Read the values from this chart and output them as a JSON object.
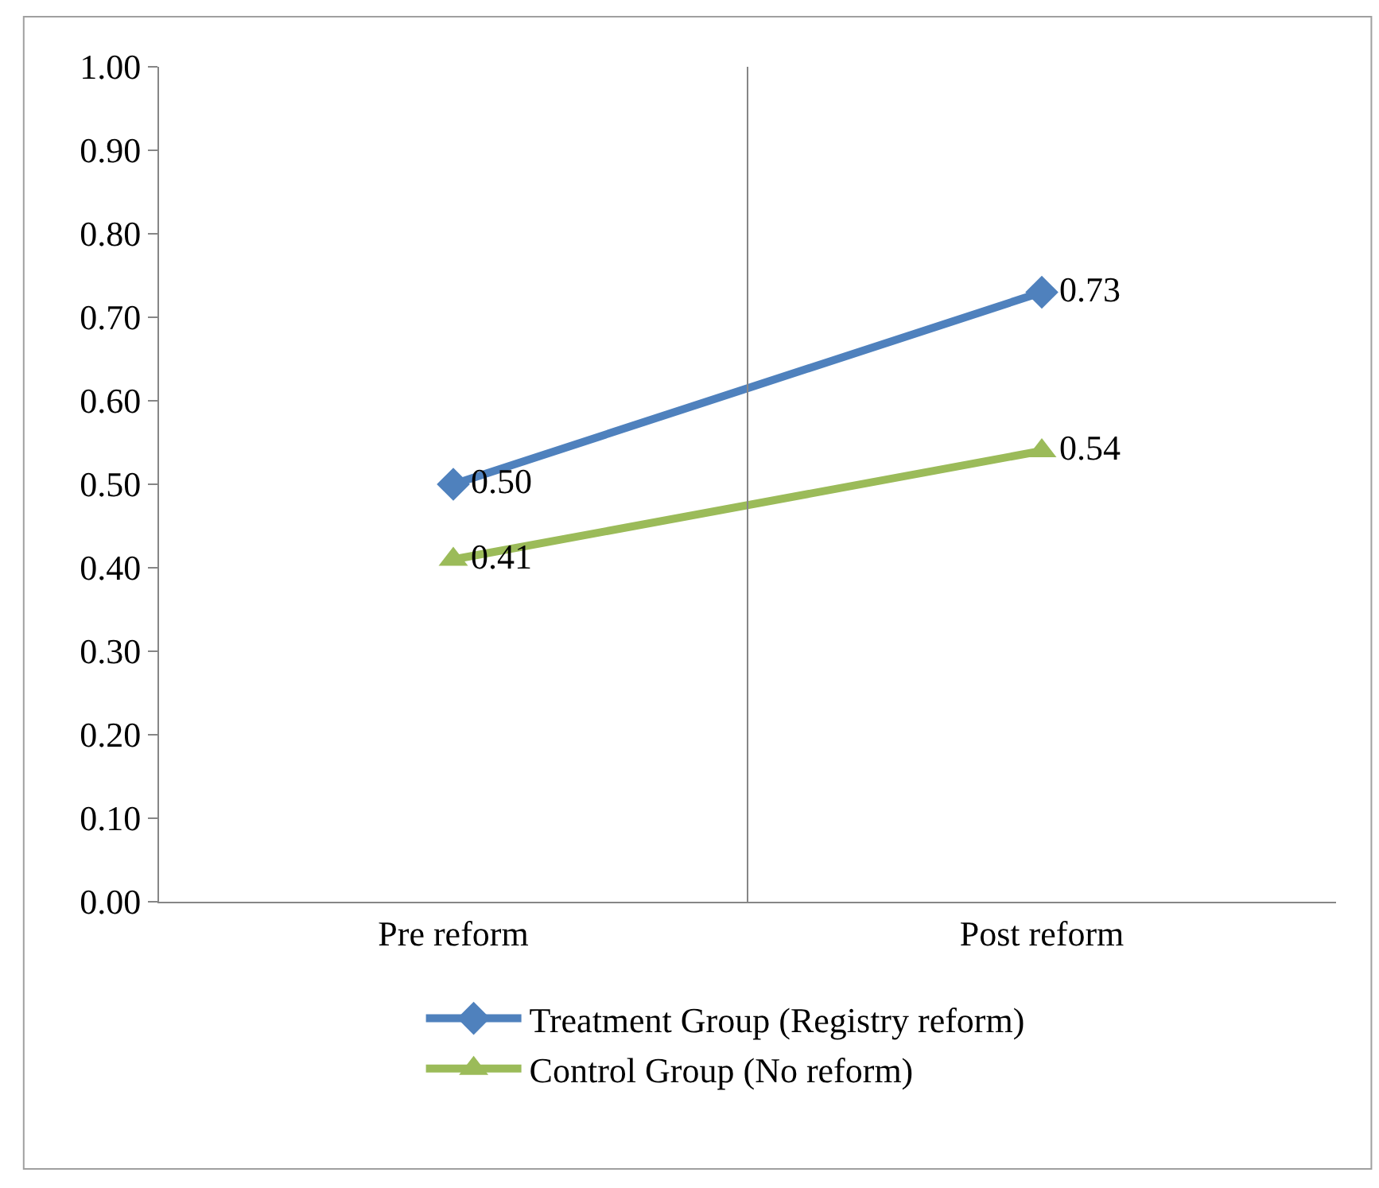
{
  "chart_data": {
    "type": "line",
    "categories": [
      "Pre reform",
      "Post reform"
    ],
    "series": [
      {
        "name": "Treatment Group (Registry reform)",
        "color": "#4f81bd",
        "values": [
          0.5,
          0.73
        ],
        "marker": "diamond"
      },
      {
        "name": "Control Group (No reform)",
        "color": "#9bbb59",
        "values": [
          0.41,
          0.54
        ],
        "marker": "triangle"
      }
    ],
    "ylim": [
      0,
      1
    ],
    "yticks": [
      {
        "value": 0,
        "label": "0.00"
      },
      {
        "value": 0.1,
        "label": "0.10"
      },
      {
        "value": 0.2,
        "label": "0.20"
      },
      {
        "value": 0.3,
        "label": "0.30"
      },
      {
        "value": 0.4,
        "label": "0.40"
      },
      {
        "value": 0.5,
        "label": "0.50"
      },
      {
        "value": 0.6,
        "label": "0.60"
      },
      {
        "value": 0.7,
        "label": "0.70"
      },
      {
        "value": 0.8,
        "label": "0.80"
      },
      {
        "value": 0.9,
        "label": "0.90"
      },
      {
        "value": 1,
        "label": "1.00"
      }
    ],
    "grid": "x",
    "legend": "bottom",
    "line_style": "solid",
    "value_labels": [
      [
        "0.50",
        "0.73"
      ],
      [
        "0.41",
        "0.54"
      ]
    ]
  }
}
